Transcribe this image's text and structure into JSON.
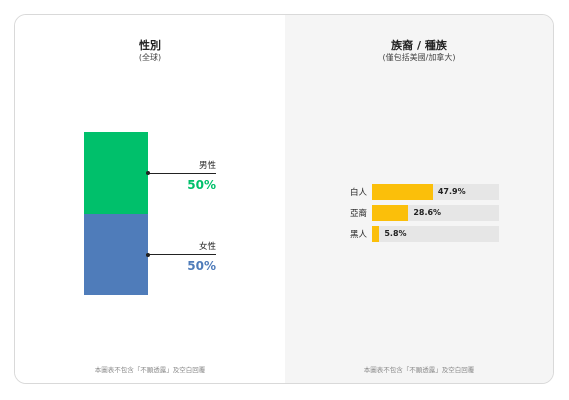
{
  "chart_data": [
    {
      "type": "bar",
      "stacked": true,
      "title": "性別",
      "subtitle": "(全球)",
      "series": [
        {
          "name": "男性",
          "value": 50,
          "label": "50%",
          "color": "#00c06b"
        },
        {
          "name": "女性",
          "value": 50,
          "label": "50%",
          "color": "#4f7cba"
        }
      ],
      "note": "本圖表不包含「不願透露」及空白回覆"
    },
    {
      "type": "bar",
      "orientation": "horizontal",
      "title": "族裔 / 種族",
      "subtitle": "(僅包括美國/加拿大)",
      "categories": [
        "白人",
        "亞裔",
        "黑人"
      ],
      "values": [
        47.9,
        28.6,
        5.8
      ],
      "labels": [
        "47.9%",
        "28.6%",
        "5.8%"
      ],
      "xlim": [
        0,
        100
      ],
      "bar_color": "#fbbf0a",
      "track_color": "#e6e6e6",
      "note": "本圖表不包含「不願透露」及空白回覆"
    }
  ]
}
